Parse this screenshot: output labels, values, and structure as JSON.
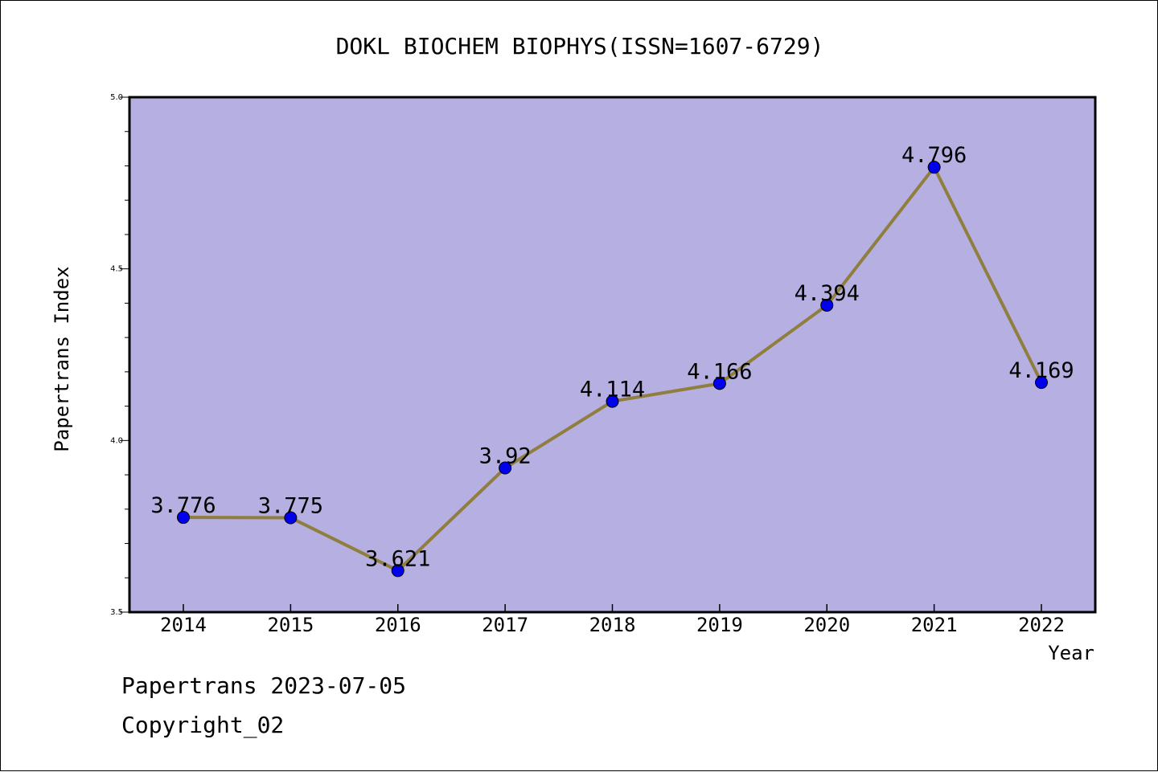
{
  "chart_data": {
    "type": "line",
    "title": "DOKL BIOCHEM BIOPHYS(ISSN=1607-6729)",
    "xlabel": "Year",
    "ylabel": "Papertrans Index",
    "categories": [
      "2014",
      "2015",
      "2016",
      "2017",
      "2018",
      "2019",
      "2020",
      "2021",
      "2022"
    ],
    "series": [
      {
        "values": [
          3.776,
          3.775,
          3.621,
          3.92,
          4.114,
          4.166,
          4.394,
          4.796,
          4.169
        ],
        "labels": [
          "3.776",
          "3.775",
          "3.621",
          "3.92",
          "4.114",
          "4.166",
          "4.394",
          "4.796",
          "4.169"
        ]
      }
    ],
    "ylim": [
      3.5,
      5.0
    ],
    "yticks": [
      "3.5",
      "4.0",
      "4.5",
      "5.0"
    ],
    "grid": false,
    "colors": {
      "plot_background": "#b5afe2",
      "line": "#8f7e3e",
      "marker": "#0000ee"
    }
  },
  "footer": {
    "line1": "Papertrans 2023-07-05",
    "line2": "Copyright_02"
  }
}
